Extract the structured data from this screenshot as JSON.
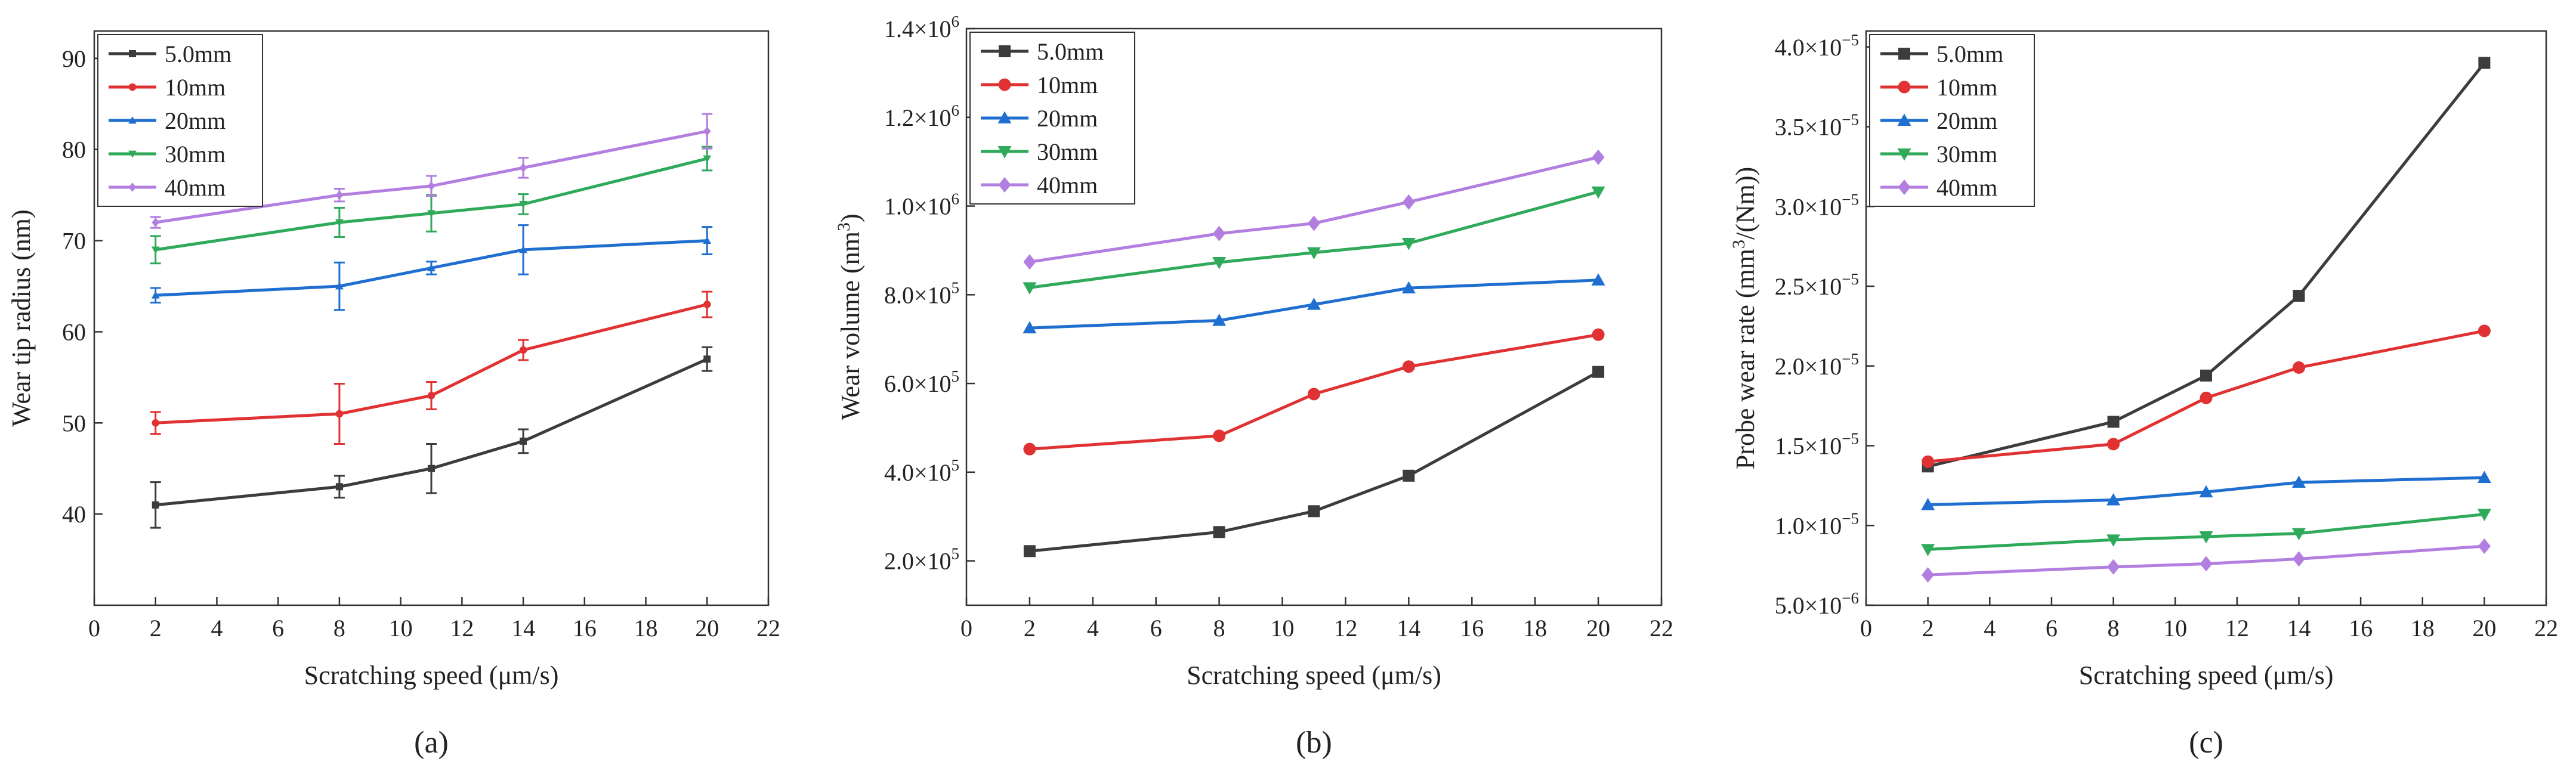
{
  "colors": {
    "5.0mm": "#3c3c3c",
    "10mm": "#e03232",
    "20mm": "#1f6fd0",
    "30mm": "#2fa95a",
    "40mm": "#b27ee0"
  },
  "chart_data": [
    {
      "id": "a",
      "panel_label": "(a)",
      "type": "line",
      "marker": "small",
      "xlabel": "Scratching speed (μm/s)",
      "ylabel": "Wear tip radius (nm)",
      "x": [
        2,
        8,
        11,
        14,
        20
      ],
      "xlim": [
        0,
        22
      ],
      "xticks": [
        0,
        2,
        4,
        6,
        8,
        10,
        12,
        14,
        16,
        18,
        20,
        22
      ],
      "ylim": [
        30,
        93
      ],
      "yticks": [
        {
          "value": 40,
          "label": "40"
        },
        {
          "value": 50,
          "label": "50"
        },
        {
          "value": 60,
          "label": "60"
        },
        {
          "value": 70,
          "label": "70"
        },
        {
          "value": 80,
          "label": "80"
        },
        {
          "value": 90,
          "label": "90"
        }
      ],
      "legend_position": "top-left",
      "series": [
        {
          "name": "5.0mm",
          "values": [
            41,
            43,
            45,
            48,
            57
          ],
          "errors": [
            2.5,
            1.2,
            2.7,
            1.3,
            1.3
          ]
        },
        {
          "name": "10mm",
          "values": [
            50,
            51,
            53,
            58,
            63
          ],
          "errors": [
            1.2,
            3.3,
            1.5,
            1.1,
            1.4
          ]
        },
        {
          "name": "20mm",
          "values": [
            64,
            65,
            67,
            69,
            70
          ],
          "errors": [
            0.8,
            2.6,
            0.7,
            2.7,
            1.5
          ]
        },
        {
          "name": "30mm",
          "values": [
            69,
            72,
            73,
            74,
            79
          ],
          "errors": [
            1.5,
            1.6,
            2.0,
            1.1,
            1.3
          ]
        },
        {
          "name": "40mm",
          "values": [
            72,
            75,
            76,
            78,
            82
          ],
          "errors": [
            0.6,
            0.7,
            1.1,
            1.1,
            1.9
          ]
        }
      ]
    },
    {
      "id": "b",
      "panel_label": "(b)",
      "type": "line",
      "marker": "large",
      "xlabel": "Scratching speed (μm/s)",
      "ylabel_pre": "Wear volume (nm",
      "ylabel_sup": "3",
      "ylabel_post": ")",
      "x": [
        2,
        8,
        11,
        14,
        20
      ],
      "xlim": [
        0,
        22
      ],
      "xticks": [
        0,
        2,
        4,
        6,
        8,
        10,
        12,
        14,
        16,
        18,
        20,
        22
      ],
      "ylim": [
        100000,
        1400000
      ],
      "yticks": [
        {
          "value": 200000,
          "mant": "2.0",
          "exp": "5"
        },
        {
          "value": 400000,
          "mant": "4.0",
          "exp": "5"
        },
        {
          "value": 600000,
          "mant": "6.0",
          "exp": "5"
        },
        {
          "value": 800000,
          "mant": "8.0",
          "exp": "5"
        },
        {
          "value": 1000000,
          "mant": "1.0",
          "exp": "6"
        },
        {
          "value": 1200000,
          "mant": "1.2",
          "exp": "6"
        },
        {
          "value": 1400000,
          "mant": "1.4",
          "exp": "6"
        }
      ],
      "legend_position": "top-left",
      "series": [
        {
          "name": "5.0mm",
          "values": [
            222000,
            265000,
            312000,
            392000,
            626000
          ]
        },
        {
          "name": "10mm",
          "values": [
            452000,
            482000,
            576000,
            638000,
            710000
          ]
        },
        {
          "name": "20mm",
          "values": [
            725000,
            742000,
            778000,
            815000,
            833000
          ]
        },
        {
          "name": "30mm",
          "values": [
            816000,
            873000,
            895000,
            916000,
            1032000
          ]
        },
        {
          "name": "40mm",
          "values": [
            874000,
            938000,
            961000,
            1009000,
            1110000
          ]
        }
      ]
    },
    {
      "id": "c",
      "panel_label": "(c)",
      "type": "line",
      "marker": "large",
      "xlabel": "Scratching speed (μm/s)",
      "ylabel_pre": "Probe wear rate (mm",
      "ylabel_sup": "3",
      "ylabel_post": "/(Nm))",
      "x": [
        2,
        8,
        11,
        14,
        20
      ],
      "xlim": [
        0,
        22
      ],
      "xticks": [
        0,
        2,
        4,
        6,
        8,
        10,
        12,
        14,
        16,
        18,
        20,
        22
      ],
      "ylim": [
        5e-06,
        4.1e-05
      ],
      "yticks": [
        {
          "value": 5e-06,
          "mant": "5.0",
          "exp": "−6"
        },
        {
          "value": 1e-05,
          "mant": "1.0",
          "exp": "−5"
        },
        {
          "value": 1.5e-05,
          "mant": "1.5",
          "exp": "−5"
        },
        {
          "value": 2e-05,
          "mant": "2.0",
          "exp": "−5"
        },
        {
          "value": 2.5e-05,
          "mant": "2.5",
          "exp": "−5"
        },
        {
          "value": 3e-05,
          "mant": "3.0",
          "exp": "−5"
        },
        {
          "value": 3.5e-05,
          "mant": "3.5",
          "exp": "−5"
        },
        {
          "value": 4e-05,
          "mant": "4.0",
          "exp": "−5"
        }
      ],
      "legend_position": "top-left",
      "series": [
        {
          "name": "5.0mm",
          "values": [
            1.37e-05,
            1.65e-05,
            1.94e-05,
            2.44e-05,
            3.9e-05
          ]
        },
        {
          "name": "10mm",
          "values": [
            1.4e-05,
            1.51e-05,
            1.8e-05,
            1.99e-05,
            2.22e-05
          ]
        },
        {
          "name": "20mm",
          "values": [
            1.13e-05,
            1.16e-05,
            1.21e-05,
            1.27e-05,
            1.3e-05
          ]
        },
        {
          "name": "30mm",
          "values": [
            8.5e-06,
            9.1e-06,
            9.3e-06,
            9.5e-06,
            1.07e-05
          ]
        },
        {
          "name": "40mm",
          "values": [
            6.9e-06,
            7.4e-06,
            7.6e-06,
            7.9e-06,
            8.7e-06
          ]
        }
      ]
    }
  ]
}
